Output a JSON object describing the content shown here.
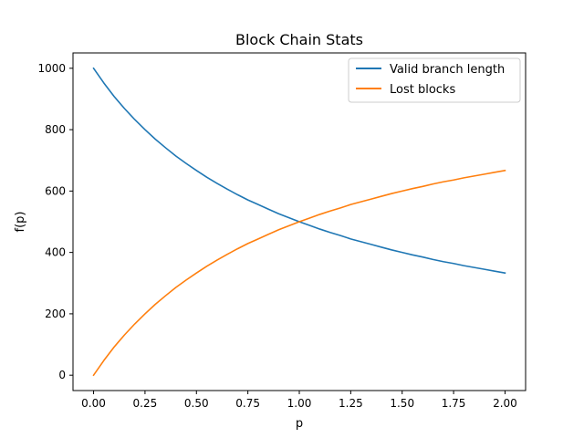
{
  "chart_data": {
    "type": "line",
    "title": "Block Chain Stats",
    "xlabel": "p",
    "ylabel": "f(p)",
    "xlim": [
      -0.1,
      2.1
    ],
    "ylim": [
      -50,
      1050
    ],
    "xticks": [
      0.0,
      0.25,
      0.5,
      0.75,
      1.0,
      1.25,
      1.5,
      1.75,
      2.0
    ],
    "xtick_labels": [
      "0.00",
      "0.25",
      "0.50",
      "0.75",
      "1.00",
      "1.25",
      "1.50",
      "1.75",
      "2.00"
    ],
    "yticks": [
      0,
      200,
      400,
      600,
      800,
      1000
    ],
    "ytick_labels": [
      "0",
      "200",
      "400",
      "600",
      "800",
      "1000"
    ],
    "grid": false,
    "legend_position": "top-right",
    "x": [
      0.0,
      0.05,
      0.1,
      0.15,
      0.2,
      0.25,
      0.3,
      0.35,
      0.4,
      0.45,
      0.5,
      0.55,
      0.6,
      0.65,
      0.7,
      0.75,
      0.8,
      0.85,
      0.9,
      0.95,
      1.0,
      1.05,
      1.1,
      1.15,
      1.2,
      1.25,
      1.3,
      1.35,
      1.4,
      1.45,
      1.5,
      1.55,
      1.6,
      1.65,
      1.7,
      1.75,
      1.8,
      1.85,
      1.9,
      1.95,
      2.0
    ],
    "series": [
      {
        "name": "Valid branch length",
        "color": "#1f77b4",
        "values": [
          1000,
          952,
          908,
          869,
          833,
          800,
          769,
          741,
          714,
          690,
          667,
          645,
          625,
          606,
          588,
          571,
          556,
          541,
          526,
          513,
          500,
          488,
          476,
          465,
          455,
          444,
          435,
          426,
          417,
          408,
          400,
          392,
          385,
          377,
          370,
          364,
          357,
          351,
          345,
          339,
          333
        ]
      },
      {
        "name": "Lost blocks",
        "color": "#ff7f0e",
        "values": [
          0,
          48,
          92,
          131,
          167,
          200,
          231,
          259,
          286,
          310,
          333,
          355,
          375,
          394,
          412,
          429,
          444,
          459,
          474,
          487,
          500,
          512,
          524,
          535,
          545,
          556,
          565,
          574,
          583,
          592,
          600,
          608,
          615,
          623,
          630,
          636,
          643,
          649,
          655,
          661,
          667
        ]
      }
    ]
  }
}
